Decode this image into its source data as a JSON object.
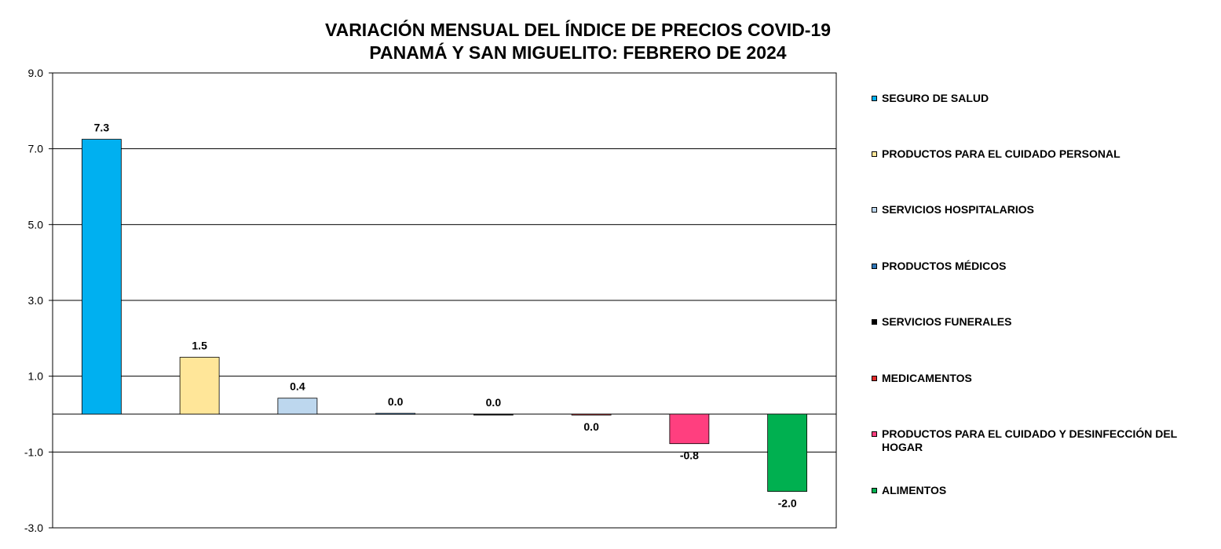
{
  "chart_data": {
    "type": "bar",
    "title_lines": [
      "VARIACIÓN MENSUAL DEL ÍNDICE DE PRECIOS COVID-19",
      "PANAMÁ Y SAN MIGUELITO: FEBRERO DE 2024"
    ],
    "xlabel": "",
    "ylabel": "",
    "ylim": [
      -3.0,
      9.0
    ],
    "yticks": [
      9.0,
      7.0,
      5.0,
      3.0,
      1.0,
      -1.0,
      -3.0
    ],
    "ytick_labels": [
      "9.0",
      "7.0",
      "5.0",
      "3.0",
      "1.0",
      "-1.0",
      "-3.0"
    ],
    "grid": true,
    "legend_position": "right",
    "categories": [
      "SEGURO DE SALUD",
      "PRODUCTOS PARA EL CUIDADO PERSONAL",
      "SERVICIOS HOSPITALARIOS",
      "PRODUCTOS MÉDICOS",
      "SERVICIOS FUNERALES",
      "MEDICAMENTOS",
      "PRODUCTOS PARA EL CUIDADO Y DESINFECCIÓN DEL HOGAR",
      "ALIMENTOS"
    ],
    "values": [
      7.25,
      1.5,
      0.42,
      0.02,
      0.0,
      -0.02,
      -0.78,
      -2.04
    ],
    "data_labels": [
      "7.3",
      "1.5",
      "0.4",
      "0.0",
      "0.0",
      "0.0",
      "-0.8",
      "-2.0"
    ],
    "colors": [
      "#00b0f0",
      "#ffe699",
      "#bdd7ee",
      "#2e75b6",
      "#000000",
      "#e02b2b",
      "#ff3f7f",
      "#00b050"
    ]
  }
}
